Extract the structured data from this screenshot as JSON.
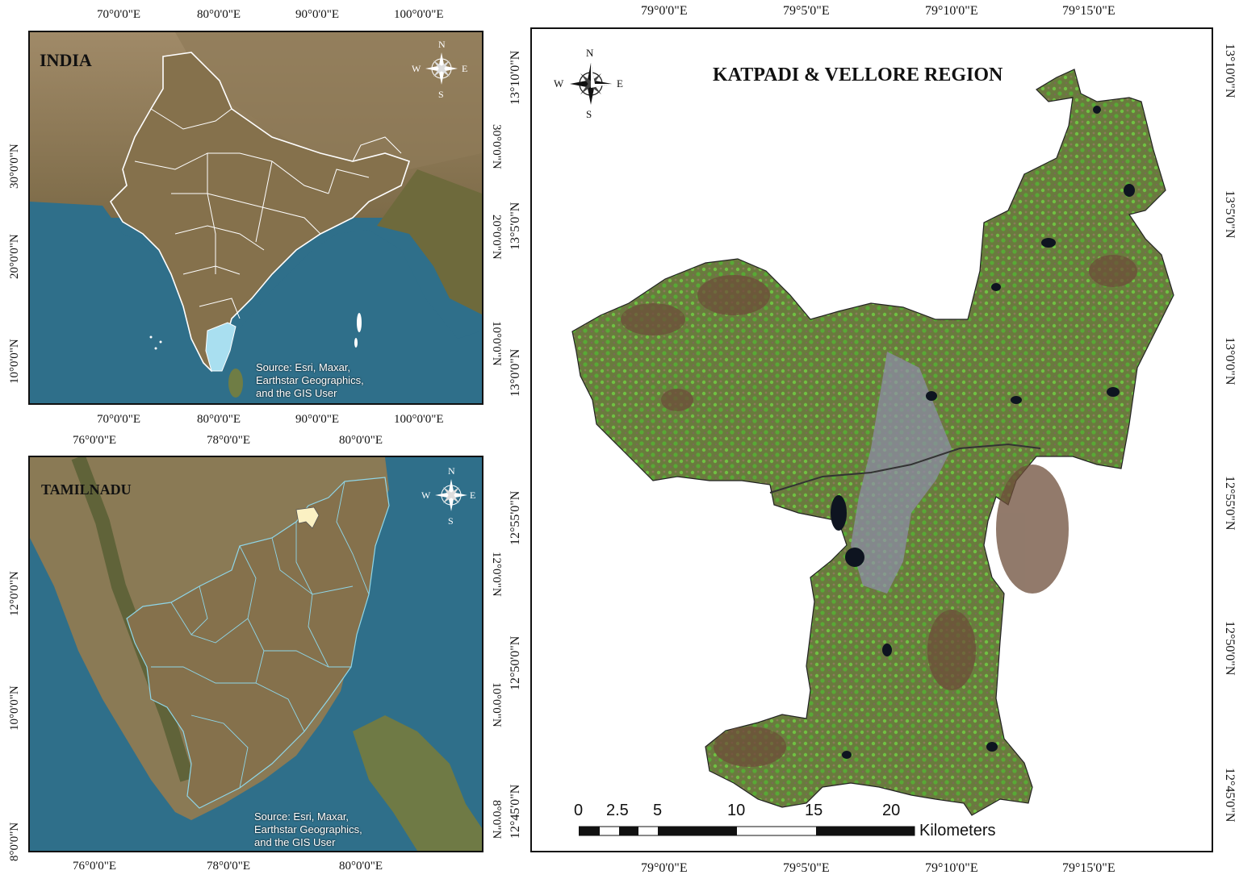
{
  "colors": {
    "ocean": "#2f6f8a",
    "land_india": "#8c7552",
    "tamilnadu_highlight": "#a9dff0",
    "study_area_highlight": "#fbf1c3",
    "boundary_white": "#ffffff",
    "boundary_cyan": "#8fd6e8",
    "vegetation": "#5fa23c",
    "urban": "#8c8da6"
  },
  "india_map": {
    "title": "INDIA",
    "source": [
      "Source: Esri, Maxar,",
      "Earthstar Geographics,",
      "and the GIS User"
    ],
    "top_ticks": [
      "70°0'0\"E",
      "80°0'0\"E",
      "90°0'0\"E",
      "100°0'0\"E"
    ],
    "bottom_ticks": [
      "70°0'0\"E",
      "80°0'0\"E",
      "90°0'0\"E",
      "100°0'0\"E"
    ],
    "left_ticks": [
      "30°0'0\"N",
      "20°0'0\"N",
      "10°0'0\"N"
    ],
    "right_ticks": [
      "30°0'0\"N",
      "20°0'0\"N",
      "10°0'0\"N"
    ],
    "compass": {
      "n": "N",
      "s": "S",
      "e": "E",
      "w": "W"
    }
  },
  "tamilnadu_map": {
    "title": "TAMILNADU",
    "source": [
      "Source: Esri, Maxar,",
      "Earthstar Geographics,",
      "and the GIS User"
    ],
    "top_ticks": [
      "76°0'0\"E",
      "78°0'0\"E",
      "80°0'0\"E"
    ],
    "bottom_ticks": [
      "76°0'0\"E",
      "78°0'0\"E",
      "80°0'0\"E"
    ],
    "left_ticks": [
      "12°0'0\"N",
      "10°0'0\"N",
      "8°0'0\"N"
    ],
    "right_ticks": [
      "12°0'0\"N",
      "10°0'0\"N",
      "8°0'0\"N"
    ],
    "compass": {
      "n": "N",
      "s": "S",
      "e": "E",
      "w": "W"
    }
  },
  "region_map": {
    "title": "KATPADI & VELLORE REGION",
    "top_ticks": [
      "79°0'0\"E",
      "79°5'0\"E",
      "79°10'0\"E",
      "79°15'0\"E"
    ],
    "bottom_ticks": [
      "79°0'0\"E",
      "79°5'0\"E",
      "79°10'0\"E",
      "79°15'0\"E"
    ],
    "left_ticks": [
      "13°10'0\"N",
      "13°5'0\"N",
      "13°0'0\"N",
      "12°55'0\"N",
      "12°50'0\"N",
      "12°45'0\"N"
    ],
    "right_ticks": [
      "13°10'0\"N",
      "13°5'0\"N",
      "13°0'0\"N",
      "12°55'0\"N",
      "12°50'0\"N",
      "12°45'0\"N"
    ],
    "compass": {
      "n": "N",
      "s": "S",
      "e": "E",
      "w": "W"
    },
    "scale_bar": {
      "labels": [
        "0",
        "2.5",
        "5",
        "10",
        "15",
        "20"
      ],
      "unit": "Kilometers"
    }
  }
}
